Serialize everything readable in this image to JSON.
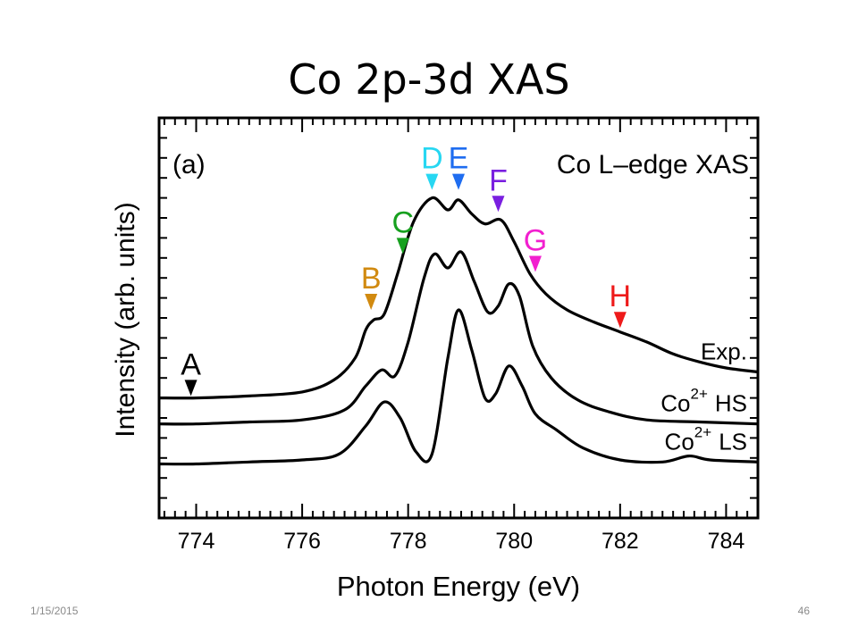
{
  "slide": {
    "title": "Co 2p-3d XAS",
    "footer_date": "1/15/2015",
    "page_number": "46"
  },
  "chart_data": {
    "type": "line",
    "panel_label": "(a)",
    "title": "Co L–edge XAS",
    "xlabel": "Photon Energy (eV)",
    "ylabel": "Intensity (arb. units)",
    "xlim": [
      773.3,
      784.6
    ],
    "ylim": [
      0,
      1
    ],
    "x_ticks": [
      774,
      776,
      778,
      780,
      782,
      784
    ],
    "y_ticks_visible": false,
    "grid": false,
    "series": [
      {
        "name": "Exp.",
        "label_main": "Exp.",
        "label_sup": "",
        "label_suffix": "",
        "color": "#000000",
        "points": [
          [
            773.3,
            0.3
          ],
          [
            774,
            0.3
          ],
          [
            775,
            0.305
          ],
          [
            776,
            0.315
          ],
          [
            776.6,
            0.345
          ],
          [
            777.0,
            0.4
          ],
          [
            777.2,
            0.47
          ],
          [
            777.35,
            0.495
          ],
          [
            777.55,
            0.51
          ],
          [
            777.8,
            0.61
          ],
          [
            778.1,
            0.74
          ],
          [
            778.45,
            0.8
          ],
          [
            778.75,
            0.77
          ],
          [
            778.95,
            0.795
          ],
          [
            779.2,
            0.76
          ],
          [
            779.45,
            0.735
          ],
          [
            779.75,
            0.745
          ],
          [
            780.0,
            0.69
          ],
          [
            780.3,
            0.61
          ],
          [
            780.6,
            0.56
          ],
          [
            781.0,
            0.52
          ],
          [
            781.5,
            0.49
          ],
          [
            782.0,
            0.465
          ],
          [
            782.5,
            0.44
          ],
          [
            783.0,
            0.41
          ],
          [
            783.5,
            0.39
          ],
          [
            784.0,
            0.375
          ],
          [
            784.6,
            0.365
          ]
        ]
      },
      {
        "name": "Co2+ HS",
        "label_main": "Co",
        "label_sup": "2+",
        "label_suffix": "HS",
        "color": "#000000",
        "points": [
          [
            773.3,
            0.235
          ],
          [
            774,
            0.235
          ],
          [
            775,
            0.24
          ],
          [
            776,
            0.245
          ],
          [
            776.8,
            0.27
          ],
          [
            777.2,
            0.33
          ],
          [
            777.5,
            0.37
          ],
          [
            777.75,
            0.355
          ],
          [
            778.0,
            0.44
          ],
          [
            778.3,
            0.6
          ],
          [
            778.5,
            0.66
          ],
          [
            778.75,
            0.625
          ],
          [
            779.0,
            0.665
          ],
          [
            779.25,
            0.59
          ],
          [
            779.5,
            0.515
          ],
          [
            779.7,
            0.53
          ],
          [
            779.9,
            0.585
          ],
          [
            780.1,
            0.555
          ],
          [
            780.35,
            0.43
          ],
          [
            780.7,
            0.35
          ],
          [
            781.2,
            0.295
          ],
          [
            781.8,
            0.265
          ],
          [
            782.5,
            0.245
          ],
          [
            783.5,
            0.24
          ],
          [
            784.6,
            0.235
          ]
        ]
      },
      {
        "name": "Co2+ LS",
        "label_main": "Co",
        "label_sup": "2+",
        "label_suffix": "LS",
        "color": "#000000",
        "points": [
          [
            773.3,
            0.135
          ],
          [
            774,
            0.135
          ],
          [
            775,
            0.14
          ],
          [
            776,
            0.145
          ],
          [
            776.7,
            0.16
          ],
          [
            777.2,
            0.23
          ],
          [
            777.55,
            0.29
          ],
          [
            777.85,
            0.25
          ],
          [
            778.15,
            0.165
          ],
          [
            778.45,
            0.16
          ],
          [
            778.75,
            0.4
          ],
          [
            778.95,
            0.52
          ],
          [
            779.2,
            0.42
          ],
          [
            779.45,
            0.3
          ],
          [
            779.65,
            0.31
          ],
          [
            779.9,
            0.38
          ],
          [
            780.15,
            0.33
          ],
          [
            780.4,
            0.26
          ],
          [
            780.8,
            0.22
          ],
          [
            781.3,
            0.175
          ],
          [
            782.0,
            0.145
          ],
          [
            782.8,
            0.14
          ],
          [
            783.3,
            0.155
          ],
          [
            783.7,
            0.145
          ],
          [
            784.6,
            0.14
          ]
        ]
      }
    ],
    "markers": [
      {
        "label": "A",
        "x": 773.9,
        "tip_y": 0.305,
        "color": "#000000"
      },
      {
        "label": "B",
        "x": 777.3,
        "tip_y": 0.52,
        "color": "#d18a10"
      },
      {
        "label": "C",
        "x": 777.9,
        "tip_y": 0.66,
        "color": "#17a01f"
      },
      {
        "label": "D",
        "x": 778.45,
        "tip_y": 0.82,
        "color": "#27d7f2"
      },
      {
        "label": "E",
        "x": 778.95,
        "tip_y": 0.82,
        "color": "#1f6df0"
      },
      {
        "label": "F",
        "x": 779.7,
        "tip_y": 0.765,
        "color": "#7a1fe0"
      },
      {
        "label": "G",
        "x": 780.4,
        "tip_y": 0.615,
        "color": "#f21fcf"
      },
      {
        "label": "H",
        "x": 782.0,
        "tip_y": 0.475,
        "color": "#ee1a1a"
      }
    ]
  }
}
